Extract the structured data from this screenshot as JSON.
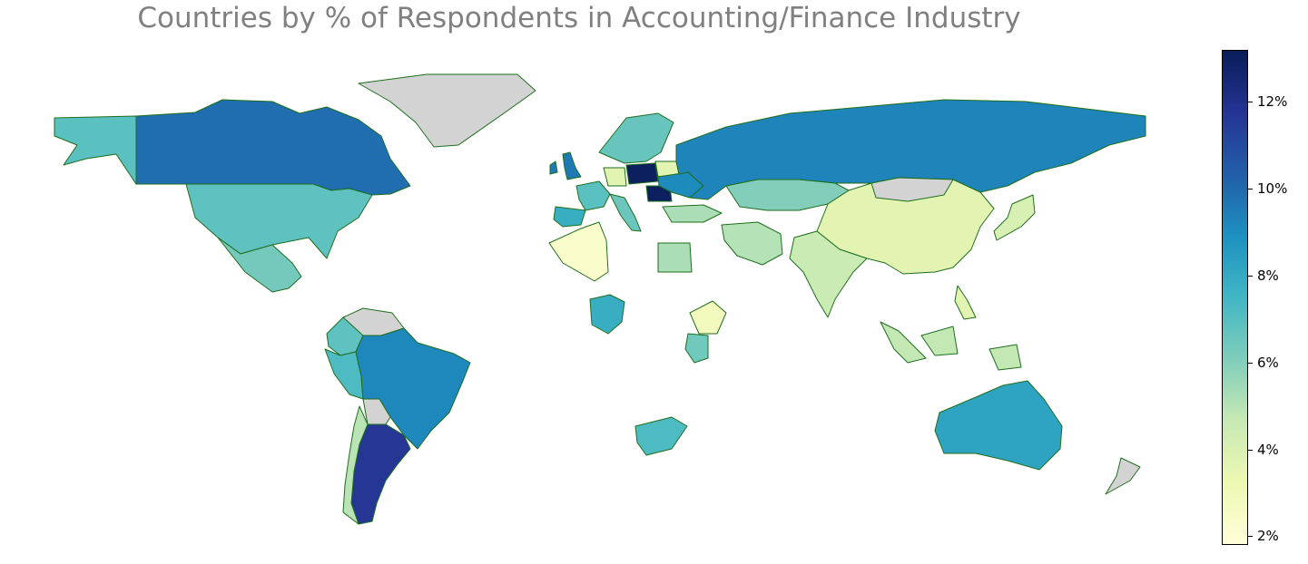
{
  "title": "Countries by % of Respondents in Accounting/Finance Industry",
  "colorbar": {
    "min": 1.8,
    "max": 13.2,
    "ticks": [
      {
        "value": 2,
        "label": "2%"
      },
      {
        "value": 4,
        "label": "4%"
      },
      {
        "value": 6,
        "label": "6%"
      },
      {
        "value": 8,
        "label": "8%"
      },
      {
        "value": 10,
        "label": "10%"
      },
      {
        "value": 12,
        "label": "12%"
      }
    ],
    "colormap": "YlGnBu",
    "stops": [
      "#ffffd9",
      "#edf8b1",
      "#c7e9b4",
      "#7fcdbb",
      "#41b6c4",
      "#1d91c0",
      "#225ea8",
      "#253494",
      "#081d58"
    ]
  },
  "no_data_color": "#d3d3d3",
  "border_color": "#1e6e1e",
  "countries": [
    {
      "name": "Canada",
      "value": 9.9
    },
    {
      "name": "Alaska (US)",
      "value": 6.9
    },
    {
      "name": "United States",
      "value": 6.8
    },
    {
      "name": "Mexico",
      "value": 6.3
    },
    {
      "name": "Greenland",
      "value": null
    },
    {
      "name": "Colombia",
      "value": 6.8
    },
    {
      "name": "Venezuela",
      "value": null
    },
    {
      "name": "Peru",
      "value": 7.2
    },
    {
      "name": "Brazil",
      "value": 9.2
    },
    {
      "name": "Bolivia",
      "value": null
    },
    {
      "name": "Argentina",
      "value": 11.7
    },
    {
      "name": "Chile",
      "value": 4.9
    },
    {
      "name": "Ireland",
      "value": 9.6
    },
    {
      "name": "United Kingdom",
      "value": 9.6
    },
    {
      "name": "France",
      "value": 6.9
    },
    {
      "name": "Spain",
      "value": 7.8
    },
    {
      "name": "Germany",
      "value": 3.6
    },
    {
      "name": "Poland",
      "value": 13.0
    },
    {
      "name": "Romania",
      "value": 13.0
    },
    {
      "name": "Italy",
      "value": 6.5
    },
    {
      "name": "Belarus",
      "value": 3.6
    },
    {
      "name": "Ukraine",
      "value": 9.1
    },
    {
      "name": "Scandinavia",
      "value": 6.6
    },
    {
      "name": "Russia",
      "value": 9.3
    },
    {
      "name": "Kazakhstan",
      "value": 6.0
    },
    {
      "name": "Turkey",
      "value": 5.2
    },
    {
      "name": "Iran",
      "value": 5.0
    },
    {
      "name": "China",
      "value": 3.6
    },
    {
      "name": "Mongolia",
      "value": null
    },
    {
      "name": "Japan",
      "value": 4.0
    },
    {
      "name": "India",
      "value": 4.5
    },
    {
      "name": "Algeria",
      "value": 2.3
    },
    {
      "name": "Egypt",
      "value": 5.2
    },
    {
      "name": "Nigeria",
      "value": 7.8
    },
    {
      "name": "Ethiopia",
      "value": 2.8
    },
    {
      "name": "Kenya",
      "value": 6.4
    },
    {
      "name": "South Africa",
      "value": 7.2
    },
    {
      "name": "Philippines",
      "value": 3.6
    },
    {
      "name": "Indonesia",
      "value": 4.7
    },
    {
      "name": "Australia",
      "value": 8.2
    },
    {
      "name": "New Zealand",
      "value": null
    }
  ]
}
